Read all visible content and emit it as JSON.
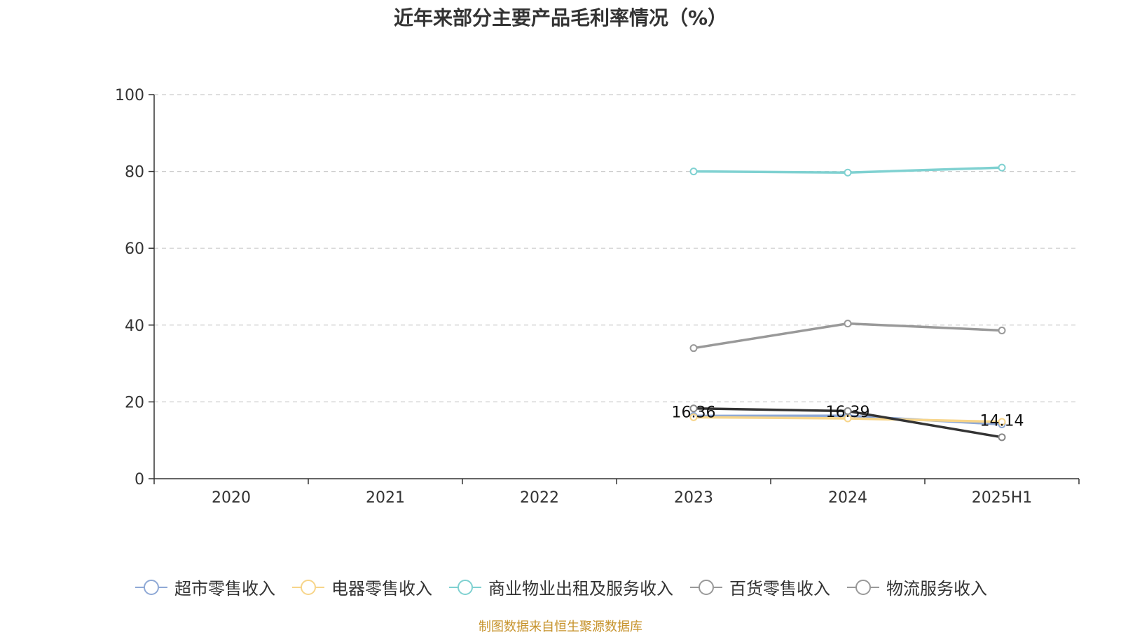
{
  "chart_data": {
    "type": "line",
    "title": "近年来部分主要产品毛利率情况（%）",
    "categories": [
      "2020",
      "2021",
      "2022",
      "2023",
      "2024",
      "2025H1"
    ],
    "ylim": [
      0,
      100
    ],
    "yticks": [
      "0",
      "20",
      "40",
      "60",
      "80",
      "100"
    ],
    "grid": true,
    "legend_position": "bottom",
    "series": [
      {
        "name": "超市零售收入",
        "color": "#8fa9d6",
        "values": [
          null,
          null,
          null,
          16.36,
          16.39,
          14.14
        ],
        "labels": [
          "",
          "",
          "",
          "16.36",
          "16.39",
          "14.14"
        ]
      },
      {
        "name": "电器零售收入",
        "color": "#f7d58a",
        "values": [
          null,
          null,
          null,
          16.0,
          15.7,
          14.8
        ]
      },
      {
        "name": "商业物业出租及服务收入",
        "color": "#7fd1d1",
        "values": [
          null,
          null,
          null,
          80.0,
          79.7,
          81.0
        ]
      },
      {
        "name": "百货零售收入",
        "color": "#999999",
        "values": [
          null,
          null,
          null,
          34.0,
          40.4,
          38.6
        ]
      },
      {
        "name": "物流服务收入",
        "color": "#333333",
        "values": [
          null,
          null,
          null,
          18.3,
          17.6,
          10.8
        ]
      }
    ]
  },
  "source": "制图数据来自恒生聚源数据库"
}
